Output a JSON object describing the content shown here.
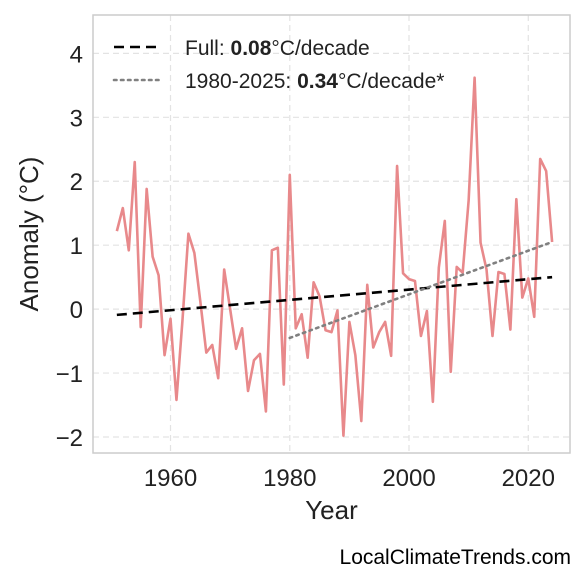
{
  "chart_data": {
    "type": "line",
    "title": "",
    "xlabel": "Year",
    "ylabel": "Anomaly (°C)",
    "xlim": [
      1947,
      2027
    ],
    "ylim": [
      -2.25,
      4.6
    ],
    "xticks": [
      1960,
      1980,
      2000,
      2020
    ],
    "yticks": [
      4,
      3,
      2,
      1,
      0,
      -1,
      -2
    ],
    "ytick_labels": [
      "4",
      "3",
      "2",
      "1",
      "0",
      "−1",
      "−2"
    ],
    "grid": true,
    "legend_position": "top-left",
    "series": [
      {
        "name": "",
        "style": "solid",
        "color": "#e8898b",
        "x": [
          1951,
          1952,
          1953,
          1954,
          1955,
          1956,
          1957,
          1958,
          1959,
          1960,
          1961,
          1962,
          1963,
          1964,
          1965,
          1966,
          1967,
          1968,
          1969,
          1970,
          1971,
          1972,
          1973,
          1974,
          1975,
          1976,
          1977,
          1978,
          1979,
          1980,
          1981,
          1982,
          1983,
          1984,
          1985,
          1986,
          1987,
          1988,
          1989,
          1990,
          1991,
          1992,
          1993,
          1994,
          1995,
          1996,
          1997,
          1998,
          1999,
          2000,
          2001,
          2002,
          2003,
          2004,
          2005,
          2006,
          2007,
          2008,
          2009,
          2010,
          2011,
          2012,
          2013,
          2014,
          2015,
          2016,
          2017,
          2018,
          2019,
          2020,
          2021,
          2022,
          2023,
          2024
        ],
        "y": [
          1.22,
          1.58,
          0.92,
          2.3,
          -0.28,
          1.88,
          0.82,
          0.53,
          -0.72,
          -0.15,
          -1.42,
          -0.18,
          1.18,
          0.88,
          0.12,
          -0.68,
          -0.56,
          -1.08,
          0.62,
          0.0,
          -0.62,
          -0.3,
          -1.28,
          -0.8,
          -0.7,
          -1.6,
          0.92,
          0.96,
          -1.18,
          2.1,
          -0.3,
          -0.08,
          -0.76,
          0.42,
          0.2,
          -0.33,
          -0.36,
          -0.02,
          -1.98,
          -0.2,
          -0.72,
          -1.75,
          0.38,
          -0.6,
          -0.36,
          -0.2,
          -0.73,
          2.24,
          0.56,
          0.47,
          0.44,
          -0.42,
          -0.03,
          -1.45,
          0.65,
          1.38,
          -0.98,
          0.66,
          0.57,
          1.7,
          3.62,
          1.04,
          0.62,
          -0.42,
          0.58,
          0.55,
          -0.32,
          1.72,
          0.18,
          0.48,
          -0.12,
          2.35,
          2.16,
          1.05
        ]
      },
      {
        "name": "Full",
        "style": "dashed",
        "color": "#000000",
        "x": [
          1951,
          2024
        ],
        "y": [
          -0.09,
          0.5
        ]
      },
      {
        "name": "1980-2025",
        "style": "dotted",
        "color": "#808080",
        "x": [
          1980,
          2024
        ],
        "y": [
          -0.45,
          1.05
        ]
      }
    ],
    "legend": [
      {
        "prefix": "Full: ",
        "value": "0.08",
        "suffix": "°C/decade",
        "style": "dashed",
        "color": "#000000"
      },
      {
        "prefix": "1980-2025: ",
        "value": "0.34",
        "suffix": "°C/decade*",
        "style": "dotted",
        "color": "#808080"
      }
    ]
  },
  "source": "LocalClimateTrends.com"
}
